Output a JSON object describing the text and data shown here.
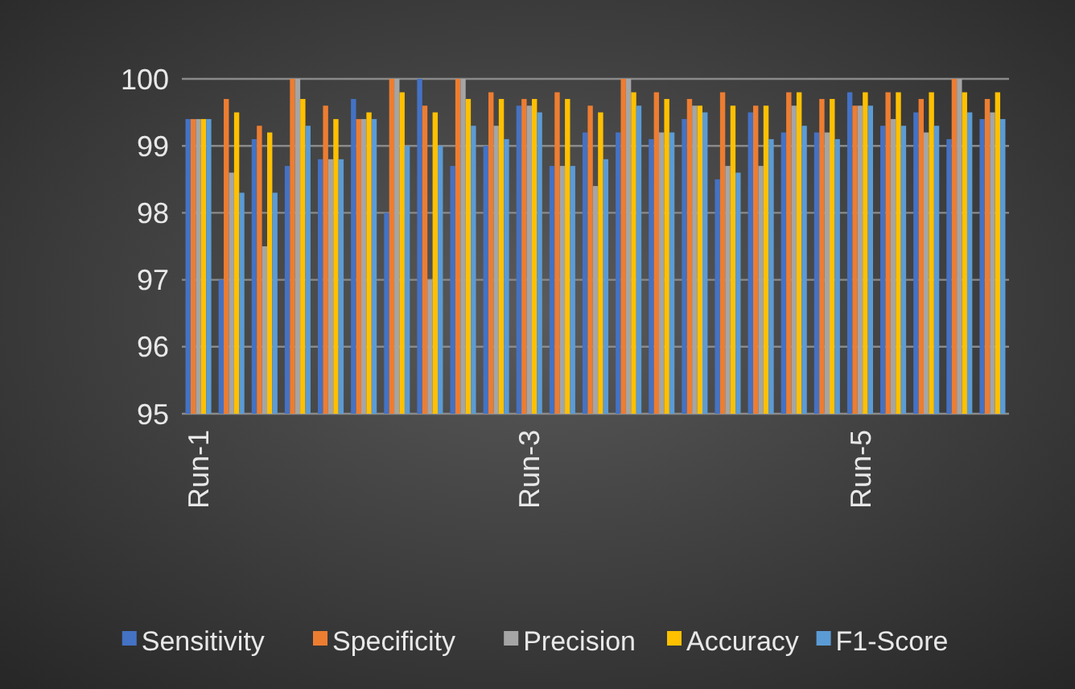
{
  "chart_data": {
    "type": "bar",
    "categories": [
      "Run-1",
      null,
      null,
      null,
      null,
      null,
      null,
      null,
      null,
      null,
      "Run-3",
      null,
      null,
      null,
      null,
      null,
      null,
      null,
      null,
      null,
      "Run-5",
      null,
      null,
      null,
      null
    ],
    "series": [
      {
        "name": "Sensitivity",
        "color": "#4472c4",
        "values": [
          99.4,
          97.0,
          99.1,
          98.7,
          98.8,
          99.7,
          98.0,
          100,
          98.7,
          99.0,
          99.6,
          98.7,
          99.2,
          99.2,
          99.1,
          99.4,
          98.5,
          99.5,
          99.2,
          99.2,
          99.8,
          99.3,
          99.5,
          99.1,
          99.4
        ]
      },
      {
        "name": "Specificity",
        "color": "#ed7d31",
        "values": [
          99.4,
          99.7,
          99.3,
          100,
          99.6,
          99.4,
          100,
          99.6,
          100,
          99.8,
          99.7,
          99.8,
          99.6,
          100,
          99.8,
          99.7,
          99.8,
          99.6,
          99.8,
          99.7,
          99.6,
          99.8,
          99.7,
          100,
          99.7
        ]
      },
      {
        "name": "Precision",
        "color": "#a5a5a5",
        "values": [
          99.4,
          98.6,
          97.5,
          100,
          98.8,
          99.4,
          100,
          97.0,
          100,
          99.3,
          99.6,
          98.7,
          98.4,
          100,
          99.2,
          99.6,
          98.7,
          98.7,
          99.6,
          99.2,
          99.6,
          99.4,
          99.2,
          100,
          99.5
        ]
      },
      {
        "name": "Accuracy",
        "color": "#ffc000",
        "values": [
          99.4,
          99.5,
          99.2,
          99.7,
          99.4,
          99.5,
          99.8,
          99.5,
          99.7,
          99.7,
          99.7,
          99.7,
          99.5,
          99.8,
          99.7,
          99.6,
          99.6,
          99.6,
          99.8,
          99.7,
          99.8,
          99.8,
          99.8,
          99.8,
          99.8
        ]
      },
      {
        "name": "F1-Score",
        "color": "#5b9bd5",
        "values": [
          99.4,
          98.3,
          98.3,
          99.3,
          98.8,
          99.4,
          99.0,
          99.0,
          99.3,
          99.1,
          99.5,
          98.7,
          98.8,
          99.6,
          99.2,
          99.5,
          98.6,
          99.1,
          99.3,
          99.1,
          99.6,
          99.3,
          99.3,
          99.5,
          99.4
        ]
      }
    ],
    "ylim": [
      95,
      100
    ],
    "yticks": [
      95,
      96,
      97,
      98,
      99,
      100
    ],
    "grid": "y",
    "legend": "bottom"
  }
}
